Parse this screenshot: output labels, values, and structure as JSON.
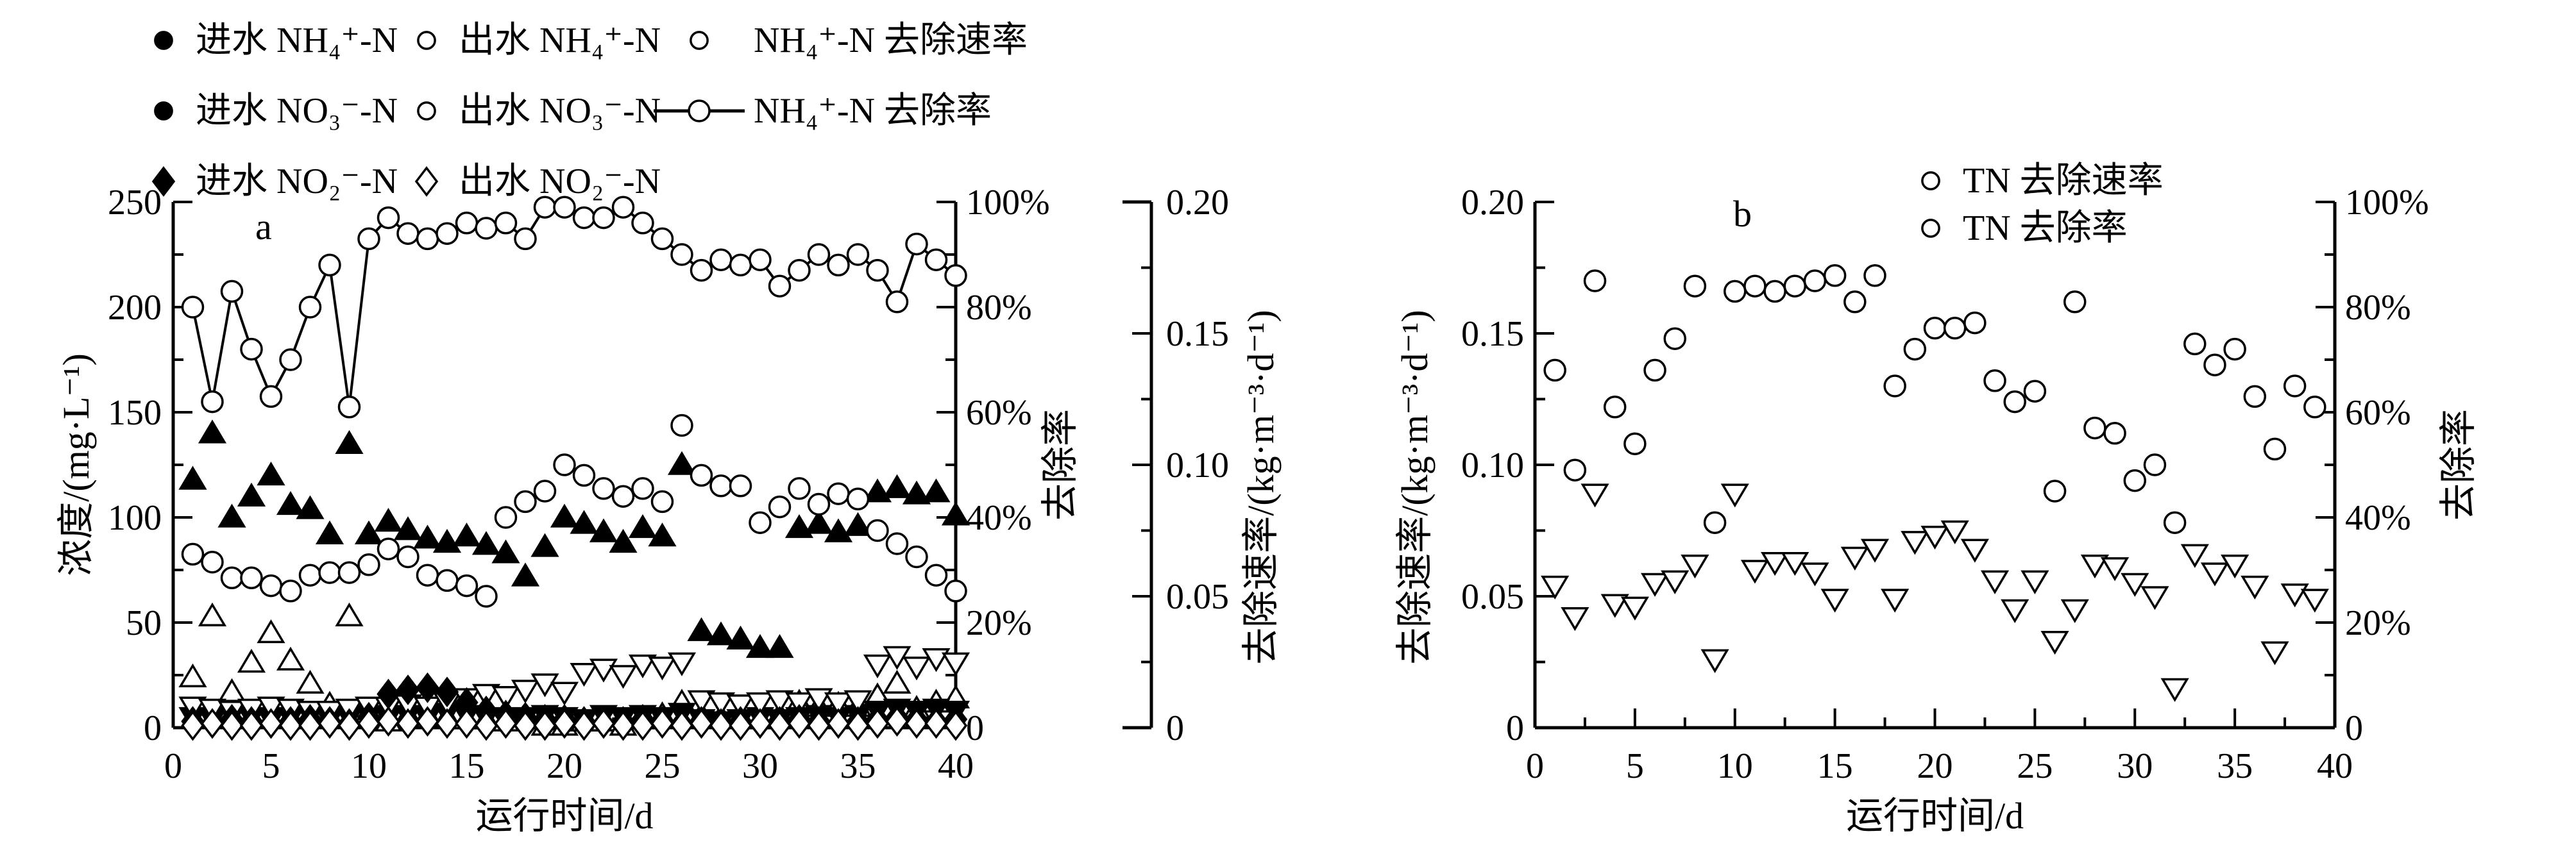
{
  "page": {
    "background": "#ffffff",
    "ink": "#000000"
  },
  "panel_a": {
    "panel_label": "a",
    "legend_items": [
      {
        "icon": "triangle-up-filled-icon",
        "label": "进水 NH₄⁺-N"
      },
      {
        "icon": "triangle-up-open-icon",
        "label": "出水 NH₄⁺-N"
      },
      {
        "icon": "circle-open-icon",
        "label": "NH₄⁺-N 去除速率"
      },
      {
        "icon": "triangle-down-filled-icon",
        "label": "进水 NO₃⁻-N"
      },
      {
        "icon": "triangle-down-open-icon",
        "label": "出水 NO₃⁻-N"
      },
      {
        "icon": "line-circle-icon",
        "label": "NH₄⁺-N 去除率"
      },
      {
        "icon": "diamond-filled-icon",
        "label": "进水 NO₂⁻-N"
      },
      {
        "icon": "diamond-open-icon",
        "label": "出水 NO₂⁻-N"
      }
    ]
  },
  "panel_b": {
    "panel_label": "b",
    "legend_items": [
      {
        "icon": "triangle-down-open-icon",
        "label": "TN 去除速率"
      },
      {
        "icon": "circle-open-icon",
        "label": "TN 去除率"
      }
    ]
  },
  "chart_data": [
    {
      "id": "a",
      "type": "scatter",
      "panel_label": "a",
      "xlabel": "运行时间/d",
      "xlim": [
        0,
        40
      ],
      "x_ticks": [
        0,
        5,
        10,
        15,
        20,
        25,
        30,
        35,
        40
      ],
      "x_minor_step": 2.5,
      "left_axis": {
        "label": "浓度/(mg·L⁻¹)",
        "lim": [
          0,
          250
        ],
        "tick_values": [
          0,
          50,
          100,
          150,
          200,
          250
        ],
        "tick_labels": [
          "0",
          "50",
          "100",
          "150",
          "200",
          "250"
        ],
        "minor_step": 25
      },
      "percent_axis": {
        "label": "去除率",
        "lim": [
          0,
          100
        ],
        "tick_values": [
          0,
          20,
          40,
          60,
          80,
          100
        ],
        "tick_labels": [
          "0",
          "20%",
          "40%",
          "60%",
          "80%",
          "100%"
        ],
        "minor_step": 10
      },
      "rate_axis": {
        "label": "去除速率/(kg·m⁻³·d⁻¹)",
        "lim": [
          0,
          0.2
        ],
        "tick_values": [
          0,
          0.05,
          0.1,
          0.15,
          0.2
        ],
        "tick_labels": [
          "0",
          "0.05",
          "0.10",
          "0.15",
          "0.20"
        ],
        "minor_step": 0.025
      },
      "days": [
        1,
        2,
        3,
        4,
        5,
        6,
        7,
        8,
        9,
        10,
        11,
        12,
        13,
        14,
        15,
        16,
        17,
        18,
        19,
        20,
        21,
        22,
        23,
        24,
        25,
        26,
        27,
        28,
        29,
        30,
        31,
        32,
        33,
        34,
        35,
        36,
        37,
        38,
        39,
        40
      ],
      "series": [
        {
          "name": "进水 NH₄⁺-N",
          "marker": "tri-up",
          "filled": true,
          "axis": "left",
          "values": [
            118,
            140,
            100,
            110,
            120,
            106,
            104,
            92,
            135,
            92,
            98,
            94,
            90,
            88,
            91,
            87,
            83,
            72,
            86,
            100,
            97,
            93,
            88,
            95,
            91,
            125,
            46,
            44,
            42,
            38,
            38,
            95,
            97,
            93,
            96,
            112,
            114,
            111,
            112,
            101
          ]
        },
        {
          "name": "出水 NH₄⁺-N",
          "marker": "tri-up",
          "filled": false,
          "axis": "left",
          "values": [
            24,
            53,
            17,
            31,
            45,
            32,
            21,
            11,
            53,
            7,
            3,
            6,
            6,
            5,
            4,
            4,
            3,
            5,
            1,
            1,
            3,
            3,
            1,
            4,
            6,
            12,
            6,
            5,
            5,
            4,
            6,
            12,
            10,
            11,
            10,
            15,
            21,
            9,
            12,
            14
          ]
        },
        {
          "name": "进水 NO₃⁻-N",
          "marker": "tri-down",
          "filled": true,
          "axis": "left",
          "values": [
            5,
            4,
            6,
            5,
            4,
            5,
            6,
            4,
            5,
            6,
            5,
            6,
            5,
            7,
            6,
            5,
            4,
            5,
            6,
            5,
            4,
            6,
            5,
            6,
            5,
            7,
            4,
            3,
            4,
            5,
            4,
            5,
            6,
            5,
            6,
            8,
            9,
            8,
            9,
            8
          ]
        },
        {
          "name": "出水 NO₃⁻-N",
          "marker": "tri-down",
          "filled": false,
          "axis": "left",
          "values": [
            10,
            9,
            8,
            9,
            10,
            9,
            8,
            8,
            9,
            10,
            10,
            11,
            10,
            12,
            14,
            16,
            15,
            18,
            21,
            17,
            26,
            28,
            25,
            30,
            29,
            31,
            13,
            12,
            11,
            12,
            13,
            12,
            14,
            12,
            13,
            30,
            34,
            29,
            33,
            31
          ]
        },
        {
          "name": "进水 NO₂⁻-N",
          "marker": "diamond",
          "filled": true,
          "axis": "left",
          "values": [
            3,
            2,
            4,
            3,
            2,
            3,
            4,
            3,
            2,
            5,
            16,
            18,
            19,
            17,
            12,
            8,
            6,
            5,
            4,
            4,
            3,
            2,
            3,
            4,
            3,
            2,
            3,
            2,
            3,
            2,
            3,
            4,
            3,
            2,
            3,
            4,
            5,
            4,
            3,
            4
          ]
        },
        {
          "name": "出水 NO₂⁻-N",
          "marker": "diamond",
          "filled": false,
          "axis": "left",
          "values": [
            1,
            2,
            1,
            1,
            2,
            1,
            1,
            2,
            1,
            2,
            3,
            2,
            3,
            2,
            2,
            1,
            2,
            1,
            1,
            2,
            1,
            2,
            1,
            1,
            2,
            1,
            2,
            1,
            1,
            2,
            1,
            2,
            1,
            2,
            1,
            2,
            3,
            2,
            2,
            1
          ]
        },
        {
          "name": "NH₄⁺-N 去除速率",
          "marker": "circle",
          "filled": false,
          "axis": "rate",
          "values": [
            0.066,
            0.063,
            0.057,
            0.057,
            0.054,
            0.052,
            0.058,
            0.059,
            0.059,
            0.062,
            0.068,
            0.065,
            0.058,
            0.056,
            0.054,
            0.05,
            0.08,
            0.086,
            0.09,
            0.1,
            0.096,
            0.091,
            0.088,
            0.091,
            0.086,
            0.115,
            0.096,
            0.092,
            0.092,
            0.078,
            0.084,
            0.091,
            0.085,
            0.089,
            0.087,
            0.075,
            0.07,
            0.065,
            0.058,
            0.052
          ]
        },
        {
          "name": "NH₄⁺-N 去除率",
          "marker": "circle",
          "filled": false,
          "line": true,
          "axis": "percent",
          "values": [
            80,
            62,
            83,
            72,
            63,
            70,
            80,
            88,
            61,
            93,
            97,
            94,
            93,
            94,
            96,
            95,
            96,
            93,
            99,
            99,
            97,
            97,
            99,
            96,
            93,
            90,
            87,
            89,
            88,
            89,
            84,
            87,
            90,
            88,
            90,
            87,
            81,
            92,
            89,
            86
          ]
        }
      ]
    },
    {
      "id": "b",
      "type": "scatter",
      "panel_label": "b",
      "xlabel": "运行时间/d",
      "xlim": [
        0,
        40
      ],
      "x_ticks": [
        0,
        5,
        10,
        15,
        20,
        25,
        30,
        35,
        40
      ],
      "x_minor_step": 2.5,
      "rate_axis": {
        "label": "去除速率/(kg·m⁻³·d⁻¹)",
        "lim": [
          0,
          0.2
        ],
        "tick_values": [
          0,
          0.05,
          0.1,
          0.15,
          0.2
        ],
        "tick_labels": [
          "0",
          "0.05",
          "0.10",
          "0.15",
          "0.20"
        ],
        "minor_step": 0.025
      },
      "percent_axis": {
        "label": "去除率",
        "lim": [
          0,
          100
        ],
        "tick_values": [
          0,
          20,
          40,
          60,
          80,
          100
        ],
        "tick_labels": [
          "0",
          "20%",
          "40%",
          "60%",
          "80%",
          "100%"
        ],
        "minor_step": 10
      },
      "days": [
        1,
        2,
        3,
        4,
        5,
        6,
        7,
        8,
        9,
        10,
        11,
        12,
        13,
        14,
        15,
        16,
        17,
        18,
        19,
        20,
        21,
        22,
        23,
        24,
        25,
        26,
        27,
        28,
        29,
        30,
        31,
        32,
        33,
        34,
        35,
        36,
        37,
        38,
        39
      ],
      "series": [
        {
          "name": "TN 去除速率",
          "marker": "tri-down",
          "filled": false,
          "axis": "rate",
          "values": [
            0.054,
            0.042,
            0.089,
            0.047,
            0.046,
            0.055,
            0.056,
            0.062,
            0.026,
            0.089,
            0.06,
            0.063,
            0.063,
            0.059,
            0.049,
            0.065,
            0.068,
            0.049,
            0.071,
            0.073,
            0.075,
            0.068,
            0.056,
            0.045,
            0.056,
            0.033,
            0.045,
            0.062,
            0.061,
            0.055,
            0.05,
            0.015,
            0.066,
            0.059,
            0.062,
            0.054,
            0.029,
            0.051,
            0.049
          ]
        },
        {
          "name": "TN 去除率",
          "marker": "circle",
          "filled": false,
          "axis": "percent",
          "values": [
            68,
            49,
            85,
            61,
            54,
            68,
            74,
            84,
            39,
            83,
            84,
            83,
            84,
            85,
            86,
            81,
            86,
            65,
            72,
            76,
            76,
            77,
            66,
            62,
            64,
            45,
            81,
            57,
            56,
            47,
            50,
            39,
            73,
            69,
            72,
            63,
            53,
            65,
            61
          ]
        }
      ]
    }
  ]
}
